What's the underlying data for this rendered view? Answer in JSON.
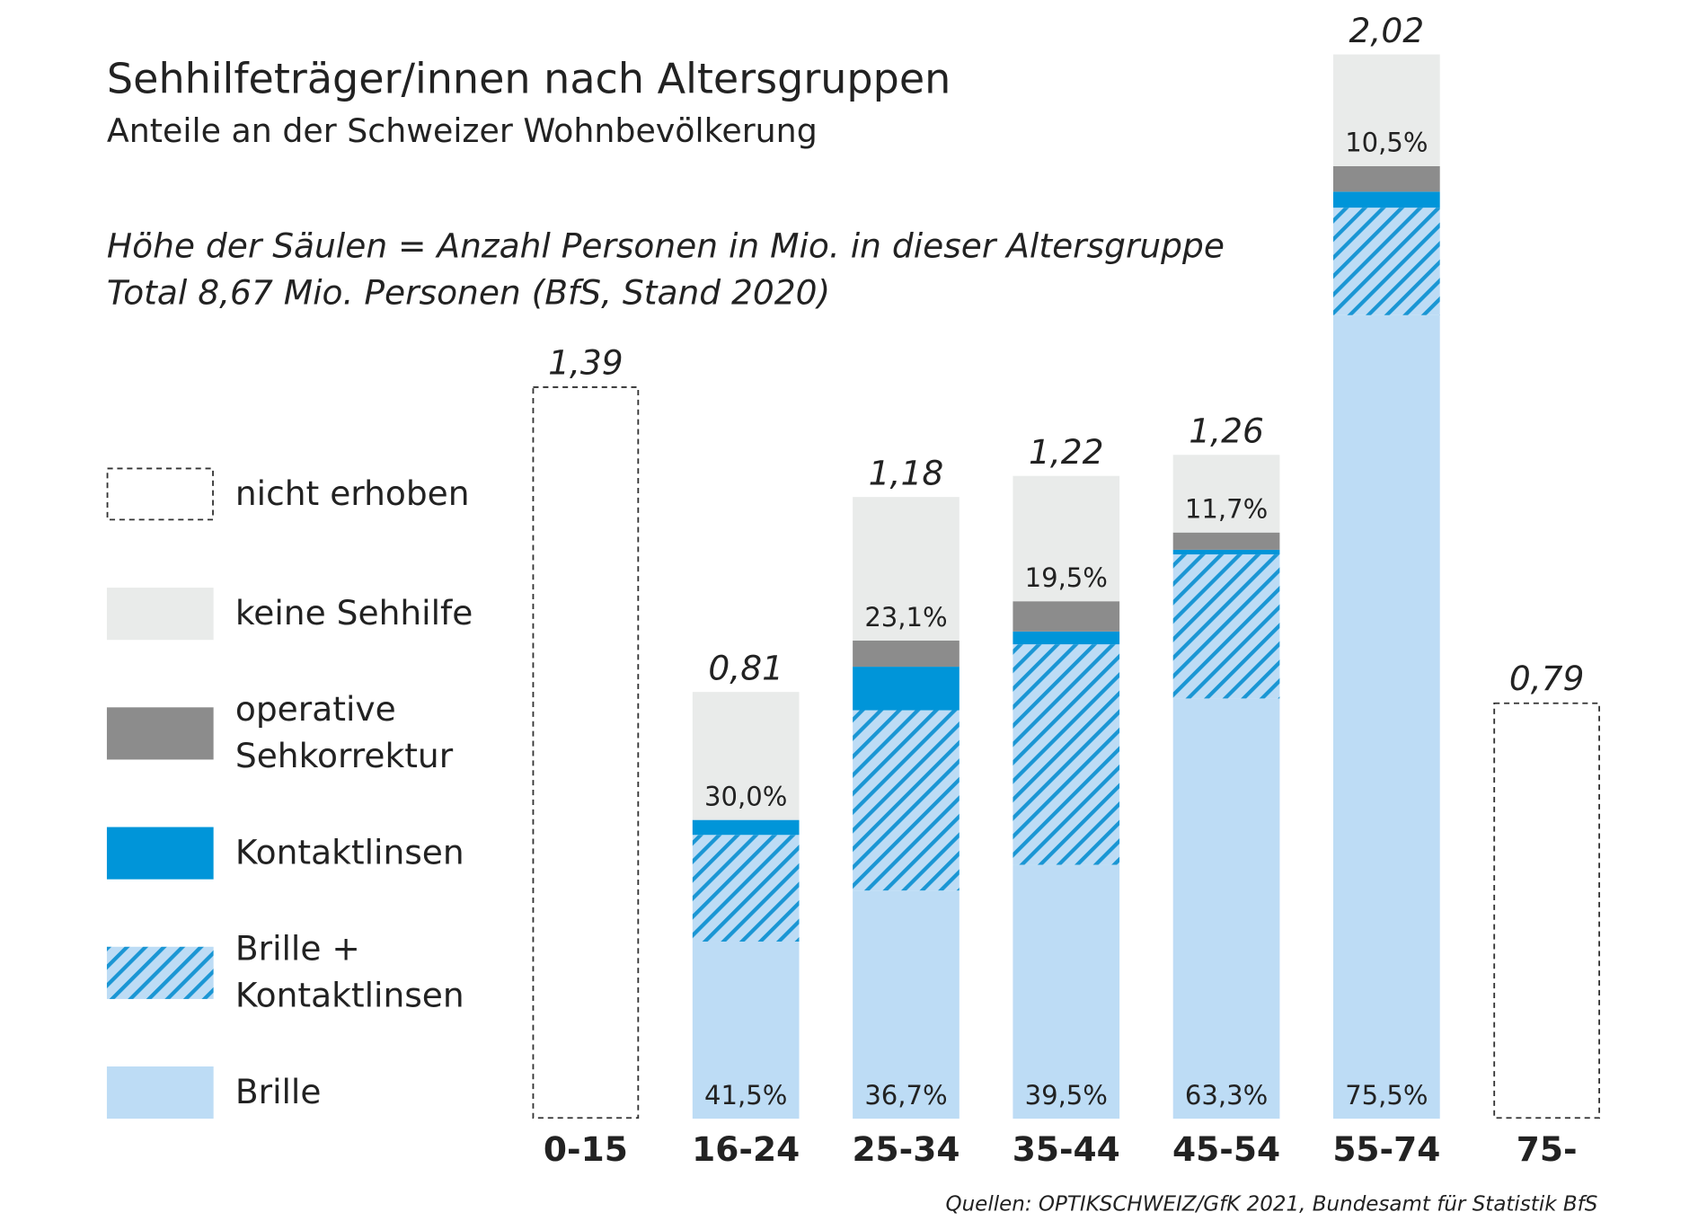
{
  "chart_data": {
    "type": "stacked-bar",
    "title": "Sehhilfeträger/innen nach Altersgruppen",
    "subtitle": "Anteile an der Schweizer Wohnbevölkerung",
    "notes": [
      "Höhe der Säulen = Anzahl Personen in Mio. in dieser Altersgruppe",
      "Total 8,67 Mio. Personen (BfS, Stand 2020)"
    ],
    "source": "Quellen: OPTIKSCHWEIZ/GfK 2021, Bundesamt für Statistik BfS",
    "categories": [
      "0-15",
      "16-24",
      "25-34",
      "35-44",
      "45-54",
      "55-74",
      "75-"
    ],
    "values": [
      1.39,
      0.81,
      1.18,
      1.22,
      1.26,
      2.02,
      0.79
    ],
    "value_labels": [
      "1,39",
      "0,81",
      "1,18",
      "1,22",
      "1,26",
      "2,02",
      "0,79"
    ],
    "series": [
      {
        "name": "nicht erhoben",
        "color": "#333333",
        "dashed": true,
        "values": [
          100,
          null,
          null,
          null,
          null,
          null,
          100
        ]
      },
      {
        "name": "keine Sehhilfe",
        "color": "#e9ebea",
        "values": [
          null,
          30.0,
          23.1,
          19.5,
          11.7,
          10.5,
          null
        ],
        "value_labels": [
          null,
          "30,0%",
          "23,1%",
          "19,5%",
          "11,7%",
          "10,5%",
          null
        ]
      },
      {
        "name": "operative Sehkorrektur",
        "color": "#8c8c8c",
        "values": [
          null,
          0,
          4.2,
          4.7,
          2.6,
          2.4,
          null
        ]
      },
      {
        "name": "Kontaktlinsen",
        "color": "#0095d9",
        "values": [
          null,
          3.5,
          7.0,
          2.0,
          0.7,
          1.5,
          null
        ]
      },
      {
        "name": "Brille + Kontaktlinsen",
        "color": "#1a96d4",
        "hatch": true,
        "background": "#bddcf5",
        "values": [
          null,
          25.0,
          29.0,
          34.3,
          21.7,
          10.1,
          null
        ]
      },
      {
        "name": "Brille",
        "color": "#bddcf5",
        "values": [
          null,
          41.5,
          36.7,
          39.5,
          63.3,
          75.5,
          null
        ],
        "value_labels": [
          null,
          "41,5%",
          "36,7%",
          "39,5%",
          "63,3%",
          "75,5%",
          null
        ]
      }
    ]
  }
}
